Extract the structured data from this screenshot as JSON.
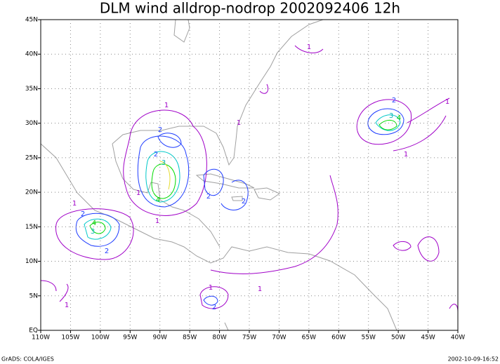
{
  "map": {
    "title": "DLM wind alldrop-nodrop 2002092406 12h",
    "xlim": [
      -110,
      -40
    ],
    "ylim": [
      0,
      45
    ],
    "xticks": [
      {
        "value": -110,
        "label": "110W"
      },
      {
        "value": -105,
        "label": "105W"
      },
      {
        "value": -100,
        "label": "100W"
      },
      {
        "value": -95,
        "label": "95W"
      },
      {
        "value": -90,
        "label": "90W"
      },
      {
        "value": -85,
        "label": "85W"
      },
      {
        "value": -80,
        "label": "80W"
      },
      {
        "value": -75,
        "label": "75W"
      },
      {
        "value": -70,
        "label": "70W"
      },
      {
        "value": -65,
        "label": "65W"
      },
      {
        "value": -60,
        "label": "60W"
      },
      {
        "value": -55,
        "label": "55W"
      },
      {
        "value": -50,
        "label": "50W"
      },
      {
        "value": -45,
        "label": "45W"
      },
      {
        "value": -40,
        "label": "40W"
      }
    ],
    "yticks": [
      {
        "value": 0,
        "label": "EQ"
      },
      {
        "value": 5,
        "label": "5N"
      },
      {
        "value": 10,
        "label": "10N"
      },
      {
        "value": 15,
        "label": "15N"
      },
      {
        "value": 20,
        "label": "20N"
      },
      {
        "value": 25,
        "label": "25N"
      },
      {
        "value": 30,
        "label": "30N"
      },
      {
        "value": 35,
        "label": "35N"
      },
      {
        "value": 40,
        "label": "40N"
      },
      {
        "value": 45,
        "label": "45N"
      }
    ],
    "grid": true,
    "contour_colors": {
      "1": "#a000c8",
      "2": "#1e3cff",
      "3": "#00b4b4",
      "4": "#00c800"
    },
    "contour_labels": [
      "1",
      "1",
      "1",
      "1",
      "1",
      "1",
      "1",
      "1",
      "1",
      "1",
      "1",
      "2",
      "2",
      "2",
      "2",
      "2",
      "2",
      "2",
      "3",
      "3",
      "4",
      "4",
      "2",
      "3",
      "4"
    ]
  },
  "footer": {
    "left": "GrADS: COLA/IGES",
    "right": "2002-10-09-16:52"
  }
}
